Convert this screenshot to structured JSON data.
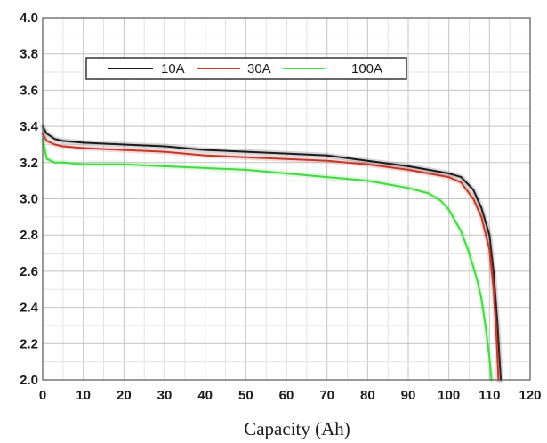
{
  "chart_data": {
    "type": "line",
    "title": "",
    "xlabel": "Capacity (Ah)",
    "ylabel": "",
    "xlim": [
      0,
      120
    ],
    "ylim": [
      2.0,
      4.0
    ],
    "x_ticks": [
      "0",
      "10",
      "20",
      "30",
      "40",
      "50",
      "60",
      "70",
      "80",
      "90",
      "100",
      "110",
      "120"
    ],
    "y_ticks": [
      "2.0",
      "2.2",
      "2.4",
      "2.6",
      "2.8",
      "3.0",
      "3.2",
      "3.4",
      "3.6",
      "3.8",
      "4.0"
    ],
    "grid": true,
    "legend_position": "top-left",
    "series": [
      {
        "name": "10A",
        "color": "#1a1a1a",
        "points": [
          [
            0,
            3.4
          ],
          [
            1,
            3.36
          ],
          [
            3,
            3.33
          ],
          [
            5,
            3.32
          ],
          [
            10,
            3.31
          ],
          [
            20,
            3.3
          ],
          [
            30,
            3.29
          ],
          [
            40,
            3.27
          ],
          [
            50,
            3.26
          ],
          [
            60,
            3.25
          ],
          [
            70,
            3.24
          ],
          [
            80,
            3.21
          ],
          [
            90,
            3.18
          ],
          [
            95,
            3.16
          ],
          [
            100,
            3.14
          ],
          [
            103,
            3.12
          ],
          [
            106,
            3.05
          ],
          [
            108,
            2.95
          ],
          [
            110,
            2.8
          ],
          [
            111,
            2.6
          ],
          [
            112,
            2.3
          ],
          [
            112.5,
            2.1
          ],
          [
            112.8,
            2.0
          ]
        ]
      },
      {
        "name": "30A",
        "color": "#c0392b",
        "points": [
          [
            0,
            3.36
          ],
          [
            1,
            3.32
          ],
          [
            3,
            3.3
          ],
          [
            5,
            3.29
          ],
          [
            10,
            3.28
          ],
          [
            20,
            3.27
          ],
          [
            30,
            3.26
          ],
          [
            40,
            3.24
          ],
          [
            50,
            3.23
          ],
          [
            60,
            3.22
          ],
          [
            70,
            3.21
          ],
          [
            80,
            3.19
          ],
          [
            90,
            3.16
          ],
          [
            95,
            3.14
          ],
          [
            100,
            3.12
          ],
          [
            103,
            3.09
          ],
          [
            106,
            3.0
          ],
          [
            108,
            2.9
          ],
          [
            110,
            2.72
          ],
          [
            111,
            2.5
          ],
          [
            111.7,
            2.25
          ],
          [
            112.2,
            2.0
          ]
        ]
      },
      {
        "name": "100A",
        "color": "#45d845",
        "points": [
          [
            0,
            3.33
          ],
          [
            1,
            3.22
          ],
          [
            3,
            3.2
          ],
          [
            5,
            3.2
          ],
          [
            10,
            3.19
          ],
          [
            20,
            3.19
          ],
          [
            30,
            3.18
          ],
          [
            40,
            3.17
          ],
          [
            50,
            3.16
          ],
          [
            60,
            3.14
          ],
          [
            70,
            3.12
          ],
          [
            80,
            3.1
          ],
          [
            90,
            3.06
          ],
          [
            95,
            3.03
          ],
          [
            98,
            2.99
          ],
          [
            100,
            2.94
          ],
          [
            103,
            2.82
          ],
          [
            105,
            2.7
          ],
          [
            107,
            2.55
          ],
          [
            108,
            2.45
          ],
          [
            109,
            2.3
          ],
          [
            110,
            2.12
          ],
          [
            110.5,
            2.0
          ]
        ]
      }
    ]
  }
}
